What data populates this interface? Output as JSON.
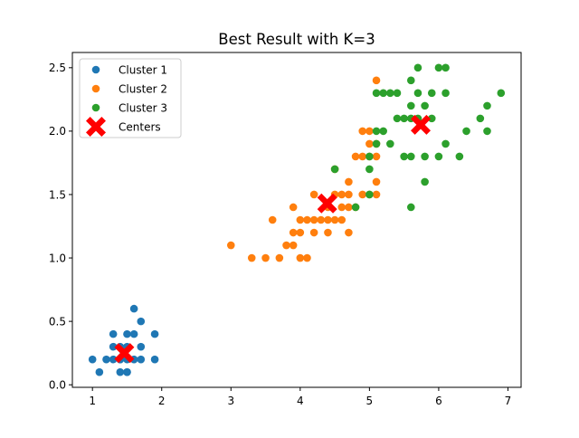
{
  "chart_data": {
    "type": "scatter",
    "title": "Best Result with K=3",
    "xlabel": "",
    "ylabel": "",
    "xlim": [
      0.71,
      7.19
    ],
    "ylim": [
      -0.02,
      2.62
    ],
    "xticks": [
      "1",
      "2",
      "3",
      "4",
      "5",
      "6",
      "7"
    ],
    "xtick_values": [
      1,
      2,
      3,
      4,
      5,
      6,
      7
    ],
    "yticks": [
      "0.0",
      "0.5",
      "1.0",
      "1.5",
      "2.0",
      "2.5"
    ],
    "ytick_values": [
      0.0,
      0.5,
      1.0,
      1.5,
      2.0,
      2.5
    ],
    "grid": false,
    "legend_position": "upper-left",
    "series": [
      {
        "name": "Cluster 1",
        "color": "#1f77b4",
        "marker": "circle",
        "points": [
          [
            1.0,
            0.2
          ],
          [
            1.1,
            0.1
          ],
          [
            1.2,
            0.2
          ],
          [
            1.3,
            0.2
          ],
          [
            1.3,
            0.3
          ],
          [
            1.3,
            0.4
          ],
          [
            1.4,
            0.1
          ],
          [
            1.4,
            0.2
          ],
          [
            1.4,
            0.3
          ],
          [
            1.5,
            0.1
          ],
          [
            1.5,
            0.2
          ],
          [
            1.5,
            0.3
          ],
          [
            1.5,
            0.4
          ],
          [
            1.6,
            0.2
          ],
          [
            1.6,
            0.4
          ],
          [
            1.6,
            0.6
          ],
          [
            1.7,
            0.2
          ],
          [
            1.7,
            0.3
          ],
          [
            1.7,
            0.5
          ],
          [
            1.9,
            0.2
          ],
          [
            1.9,
            0.4
          ],
          [
            1.5,
            0.1
          ],
          [
            1.4,
            0.2
          ]
        ]
      },
      {
        "name": "Cluster 2",
        "color": "#ff7f0e",
        "marker": "circle",
        "points": [
          [
            3.0,
            1.1
          ],
          [
            3.3,
            1.0
          ],
          [
            3.5,
            1.0
          ],
          [
            3.6,
            1.3
          ],
          [
            3.7,
            1.0
          ],
          [
            3.8,
            1.1
          ],
          [
            3.9,
            1.1
          ],
          [
            3.9,
            1.2
          ],
          [
            3.9,
            1.4
          ],
          [
            4.0,
            1.0
          ],
          [
            4.0,
            1.2
          ],
          [
            4.0,
            1.3
          ],
          [
            4.1,
            1.0
          ],
          [
            4.1,
            1.3
          ],
          [
            4.2,
            1.2
          ],
          [
            4.2,
            1.3
          ],
          [
            4.2,
            1.5
          ],
          [
            4.3,
            1.3
          ],
          [
            4.4,
            1.2
          ],
          [
            4.4,
            1.3
          ],
          [
            4.4,
            1.4
          ],
          [
            4.5,
            1.3
          ],
          [
            4.5,
            1.5
          ],
          [
            4.5,
            1.7
          ],
          [
            4.6,
            1.3
          ],
          [
            4.6,
            1.4
          ],
          [
            4.6,
            1.5
          ],
          [
            4.7,
            1.2
          ],
          [
            4.7,
            1.4
          ],
          [
            4.7,
            1.5
          ],
          [
            4.7,
            1.6
          ],
          [
            4.8,
            1.4
          ],
          [
            4.8,
            1.8
          ],
          [
            4.9,
            1.5
          ],
          [
            4.9,
            1.8
          ],
          [
            4.9,
            2.0
          ],
          [
            5.0,
            1.5
          ],
          [
            5.0,
            1.9
          ],
          [
            5.0,
            2.0
          ],
          [
            5.1,
            1.5
          ],
          [
            5.1,
            1.6
          ],
          [
            5.1,
            1.8
          ],
          [
            5.1,
            1.9
          ],
          [
            5.1,
            2.4
          ],
          [
            5.0,
            1.8
          ]
        ]
      },
      {
        "name": "Cluster 3",
        "color": "#2ca02c",
        "marker": "circle",
        "points": [
          [
            4.5,
            1.7
          ],
          [
            4.8,
            1.4
          ],
          [
            5.0,
            1.5
          ],
          [
            5.0,
            1.7
          ],
          [
            5.0,
            1.8
          ],
          [
            5.1,
            2.0
          ],
          [
            5.1,
            2.3
          ],
          [
            5.2,
            2.0
          ],
          [
            5.2,
            2.3
          ],
          [
            5.3,
            1.9
          ],
          [
            5.3,
            2.3
          ],
          [
            5.4,
            2.1
          ],
          [
            5.4,
            2.3
          ],
          [
            5.5,
            1.8
          ],
          [
            5.5,
            2.1
          ],
          [
            5.6,
            1.4
          ],
          [
            5.6,
            1.8
          ],
          [
            5.6,
            2.1
          ],
          [
            5.6,
            2.2
          ],
          [
            5.6,
            2.4
          ],
          [
            5.7,
            2.1
          ],
          [
            5.7,
            2.3
          ],
          [
            5.7,
            2.5
          ],
          [
            5.8,
            1.6
          ],
          [
            5.8,
            1.8
          ],
          [
            5.8,
            2.2
          ],
          [
            5.9,
            2.1
          ],
          [
            5.9,
            2.3
          ],
          [
            6.0,
            1.8
          ],
          [
            6.0,
            2.5
          ],
          [
            6.1,
            1.9
          ],
          [
            6.1,
            2.3
          ],
          [
            6.1,
            2.5
          ],
          [
            6.3,
            1.8
          ],
          [
            6.4,
            2.0
          ],
          [
            6.6,
            2.1
          ],
          [
            6.7,
            2.0
          ],
          [
            6.7,
            2.2
          ],
          [
            6.9,
            2.3
          ],
          [
            5.1,
            1.9
          ]
        ]
      },
      {
        "name": "Centers",
        "color": "#ff0000",
        "marker": "X",
        "points": [
          [
            1.46,
            0.25
          ],
          [
            4.39,
            1.43
          ],
          [
            5.74,
            2.05
          ]
        ]
      }
    ]
  }
}
